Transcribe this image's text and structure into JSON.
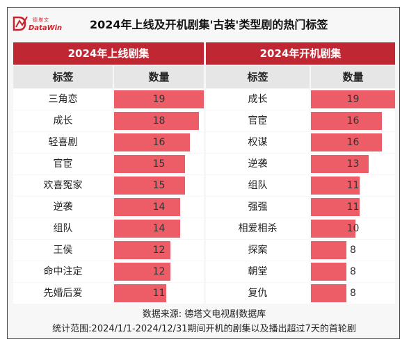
{
  "logo": {
    "cn": "德塔文",
    "en": "DataWin"
  },
  "title": "2024年上线及开机剧集'古装'类型剧的热门标签",
  "panels": [
    {
      "header": "2024年上线剧集",
      "col_tag": "标签",
      "col_count": "数量"
    },
    {
      "header": "2024年开机剧集",
      "col_tag": "标签",
      "col_count": "数量"
    }
  ],
  "footer": {
    "source": "数据来源: 德塔文电视剧数据库",
    "range": "统计范围:2024/1/1-2024/12/31期间开机的剧集以及播出超过7天的首轮剧"
  },
  "colors": {
    "header": "#bf2733",
    "bar": "#ec5d67"
  },
  "chart_data": [
    {
      "type": "bar",
      "title": "2024年上线剧集",
      "categories": [
        "三角恋",
        "成长",
        "轻喜剧",
        "官宦",
        "欢喜冤家",
        "逆袭",
        "组队",
        "王侯",
        "命中注定",
        "先婚后爱"
      ],
      "values": [
        19,
        18,
        16,
        15,
        15,
        14,
        14,
        12,
        12,
        11
      ],
      "xlabel": "数量",
      "ylabel": "标签",
      "xlim": [
        0,
        19
      ]
    },
    {
      "type": "bar",
      "title": "2024年开机剧集",
      "categories": [
        "成长",
        "官宦",
        "权谋",
        "逆袭",
        "组队",
        "强强",
        "相爱相杀",
        "探案",
        "朝堂",
        "复仇"
      ],
      "values": [
        19,
        16,
        16,
        13,
        11,
        11,
        10,
        8,
        8,
        8
      ],
      "xlabel": "数量",
      "ylabel": "标签",
      "xlim": [
        0,
        19
      ]
    }
  ]
}
